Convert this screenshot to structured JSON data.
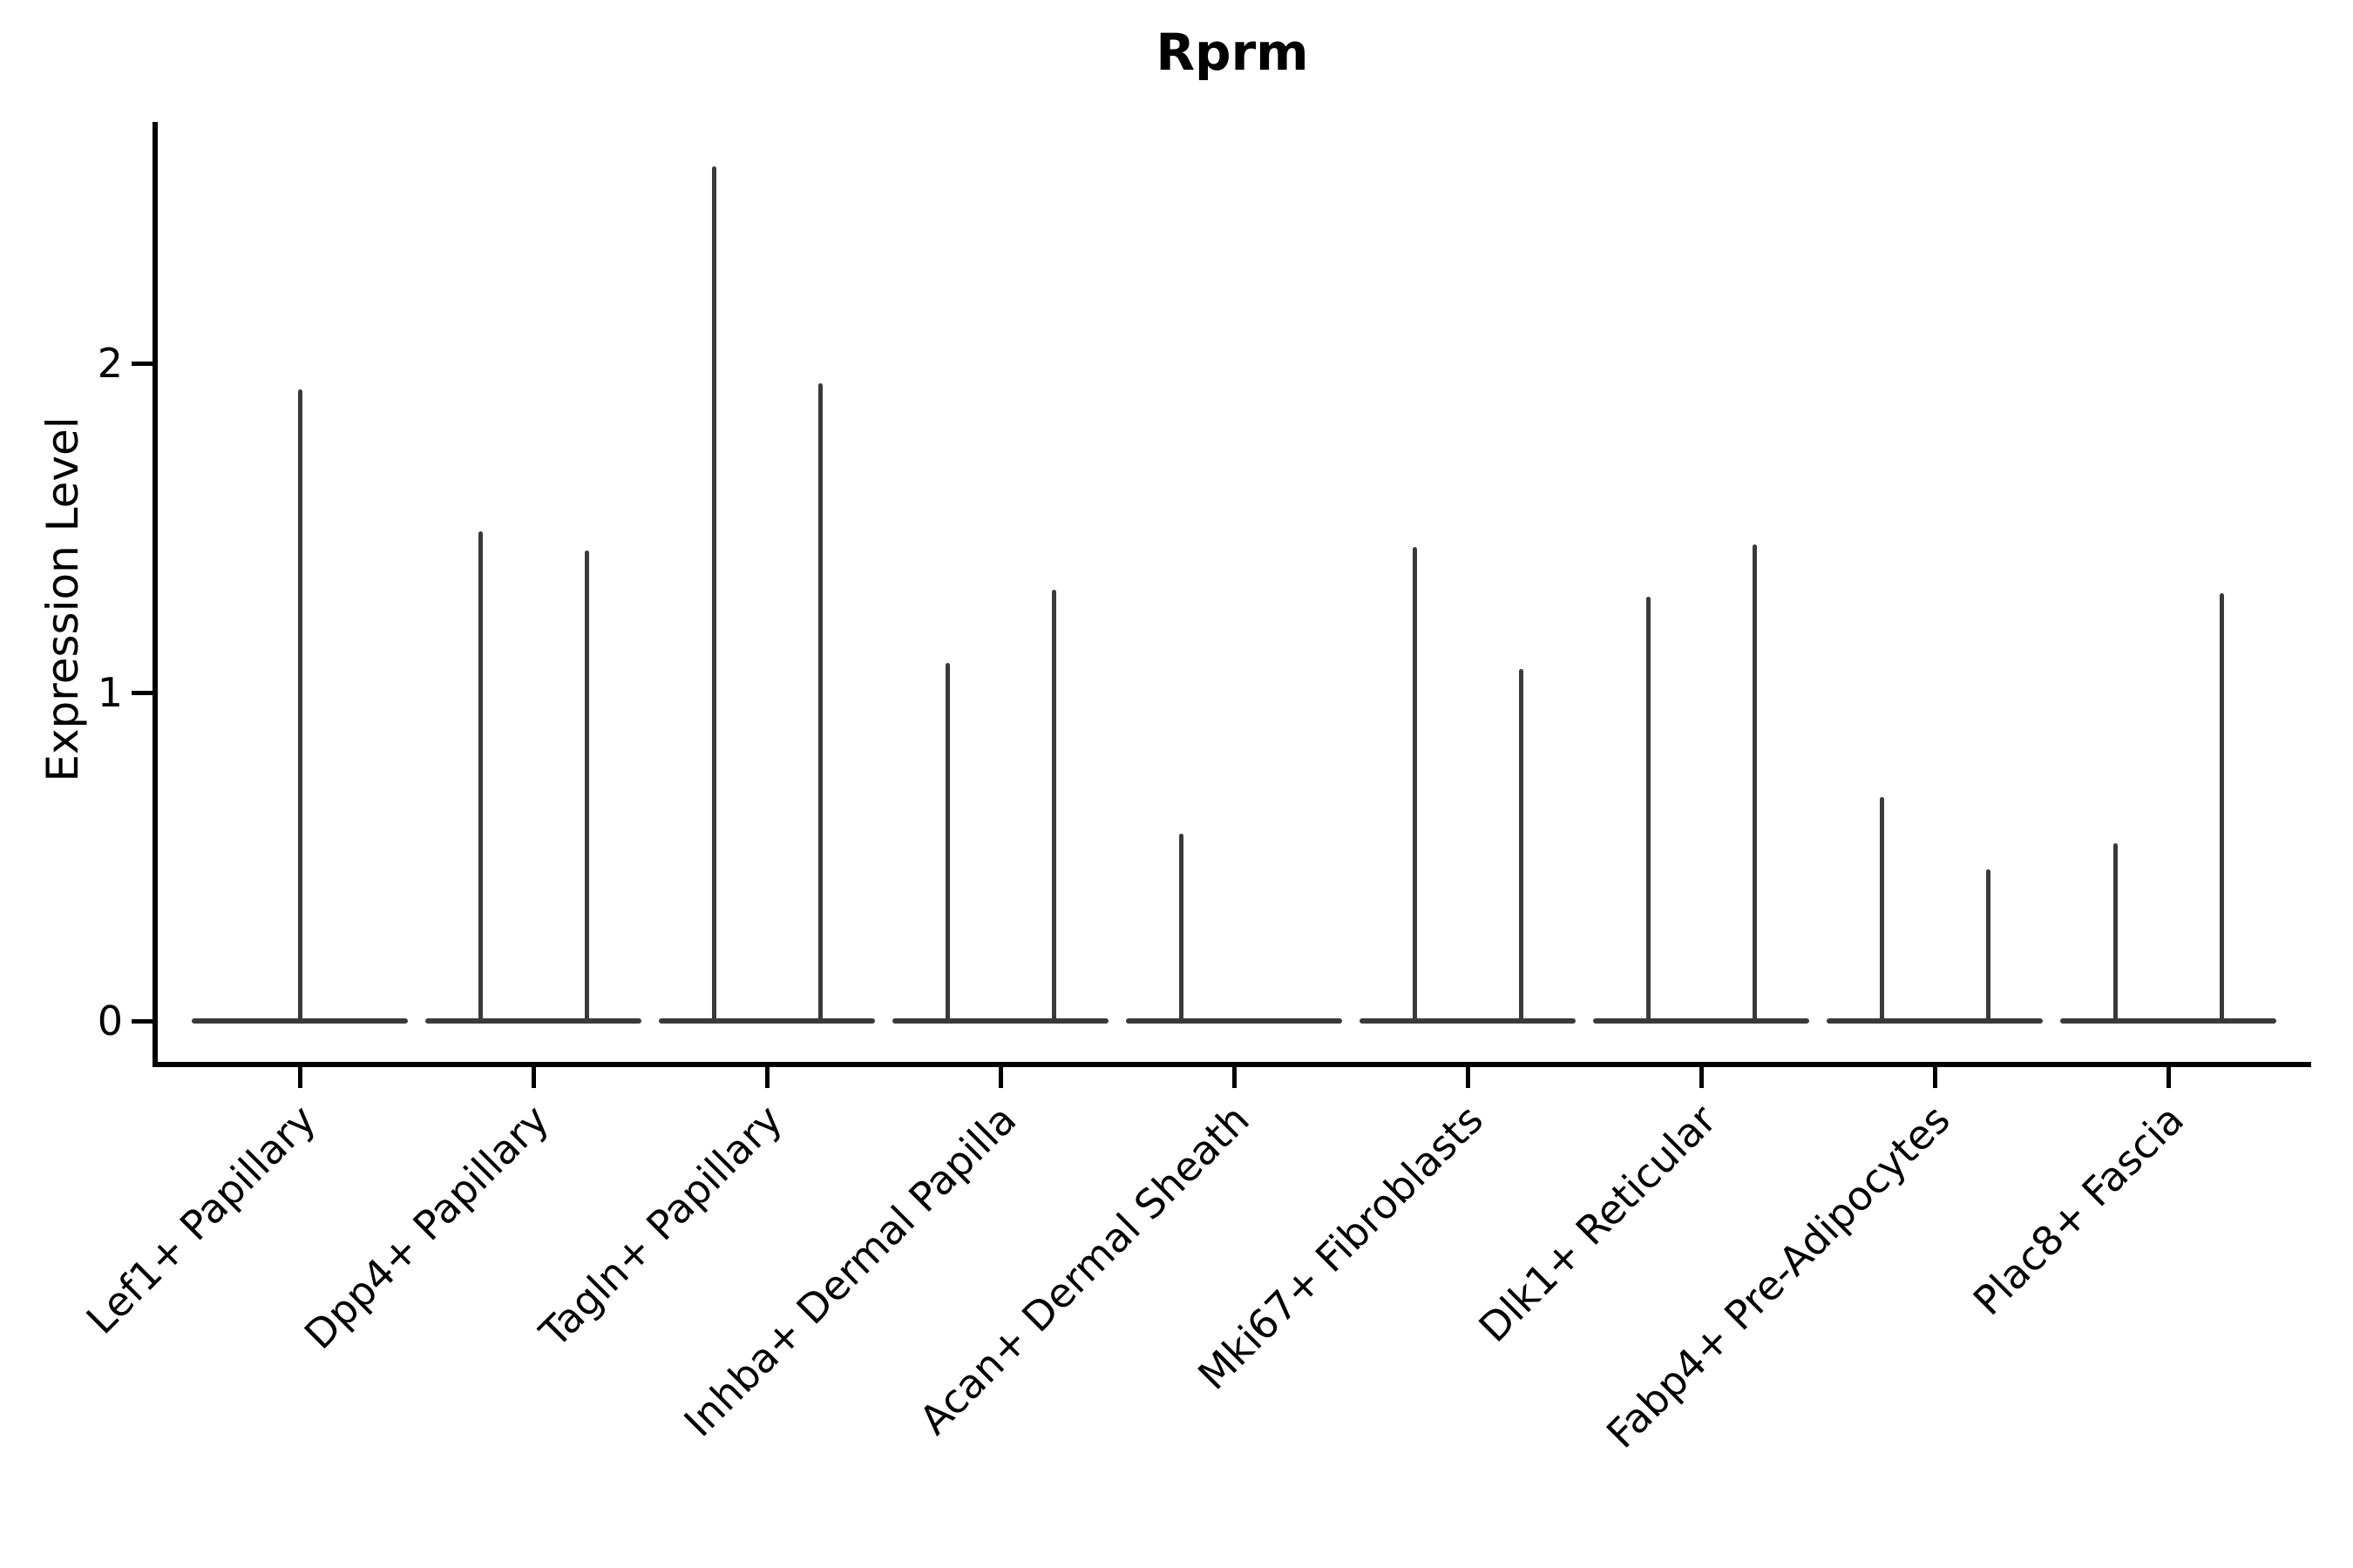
{
  "title": "Rprm",
  "y_axis": {
    "label": "Expression Level",
    "tick_labels": [
      "0",
      "1",
      "2"
    ]
  },
  "chart_data": {
    "type": "violin",
    "title": "Rprm",
    "ylabel": "Expression Level",
    "xlabel": "",
    "yticks": [
      0,
      1,
      2
    ],
    "ylim": [
      -0.13,
      2.73
    ],
    "grid": false,
    "legend": null,
    "line_color": "#3a3a3a",
    "axis_color": "#000000",
    "background_color": "#ffffff",
    "description": "Violin plot of Rprm expression; each violin is collapsed to a flat bar at 0 (most cells not expressing) with a thin density spike rising to the maximum expression value.",
    "categories": [
      "Lef1+ Papillary",
      "Dpp4+ Papillary",
      "Tagln+ Papillary",
      "Inhba+ Dermal Papilla",
      "Acan+ Dermal Sheath",
      "Mki67+ Fibroblasts",
      "Dlk1+ Reticular",
      "Fabp4+ Pre-Adipocytes",
      "Plac8+ Fascia"
    ],
    "violins": [
      {
        "category": "Lef1+ Papillary",
        "baseline_value": 0,
        "spikes": [
          {
            "position": "center",
            "max_expression": 1.92
          }
        ]
      },
      {
        "category": "Dpp4+ Papillary",
        "baseline_value": 0,
        "spikes": [
          {
            "position": "left",
            "max_expression": 1.49
          },
          {
            "position": "right",
            "max_expression": 1.43
          }
        ]
      },
      {
        "category": "Tagln+ Papillary",
        "baseline_value": 0,
        "spikes": [
          {
            "position": "left",
            "max_expression": 2.6
          },
          {
            "position": "right",
            "max_expression": 1.94
          }
        ]
      },
      {
        "category": "Inhba+ Dermal Papilla",
        "baseline_value": 0,
        "spikes": [
          {
            "position": "left",
            "max_expression": 1.09
          },
          {
            "position": "right",
            "max_expression": 1.31
          }
        ]
      },
      {
        "category": "Acan+ Dermal Sheath",
        "baseline_value": 0,
        "spikes": [
          {
            "position": "left",
            "max_expression": 0.57
          }
        ]
      },
      {
        "category": "Mki67+ Fibroblasts",
        "baseline_value": 0,
        "spikes": [
          {
            "position": "left",
            "max_expression": 1.44
          },
          {
            "position": "right",
            "max_expression": 1.07
          }
        ]
      },
      {
        "category": "Dlk1+ Reticular",
        "baseline_value": 0,
        "spikes": [
          {
            "position": "left",
            "max_expression": 1.29
          },
          {
            "position": "right",
            "max_expression": 1.45
          }
        ]
      },
      {
        "category": "Fabp4+ Pre-Adipocytes",
        "baseline_value": 0,
        "spikes": [
          {
            "position": "left",
            "max_expression": 0.68
          },
          {
            "position": "right",
            "max_expression": 0.46
          }
        ]
      },
      {
        "category": "Plac8+ Fascia",
        "baseline_value": 0,
        "spikes": [
          {
            "position": "left",
            "max_expression": 0.54
          },
          {
            "position": "right",
            "max_expression": 1.3
          }
        ]
      }
    ]
  }
}
